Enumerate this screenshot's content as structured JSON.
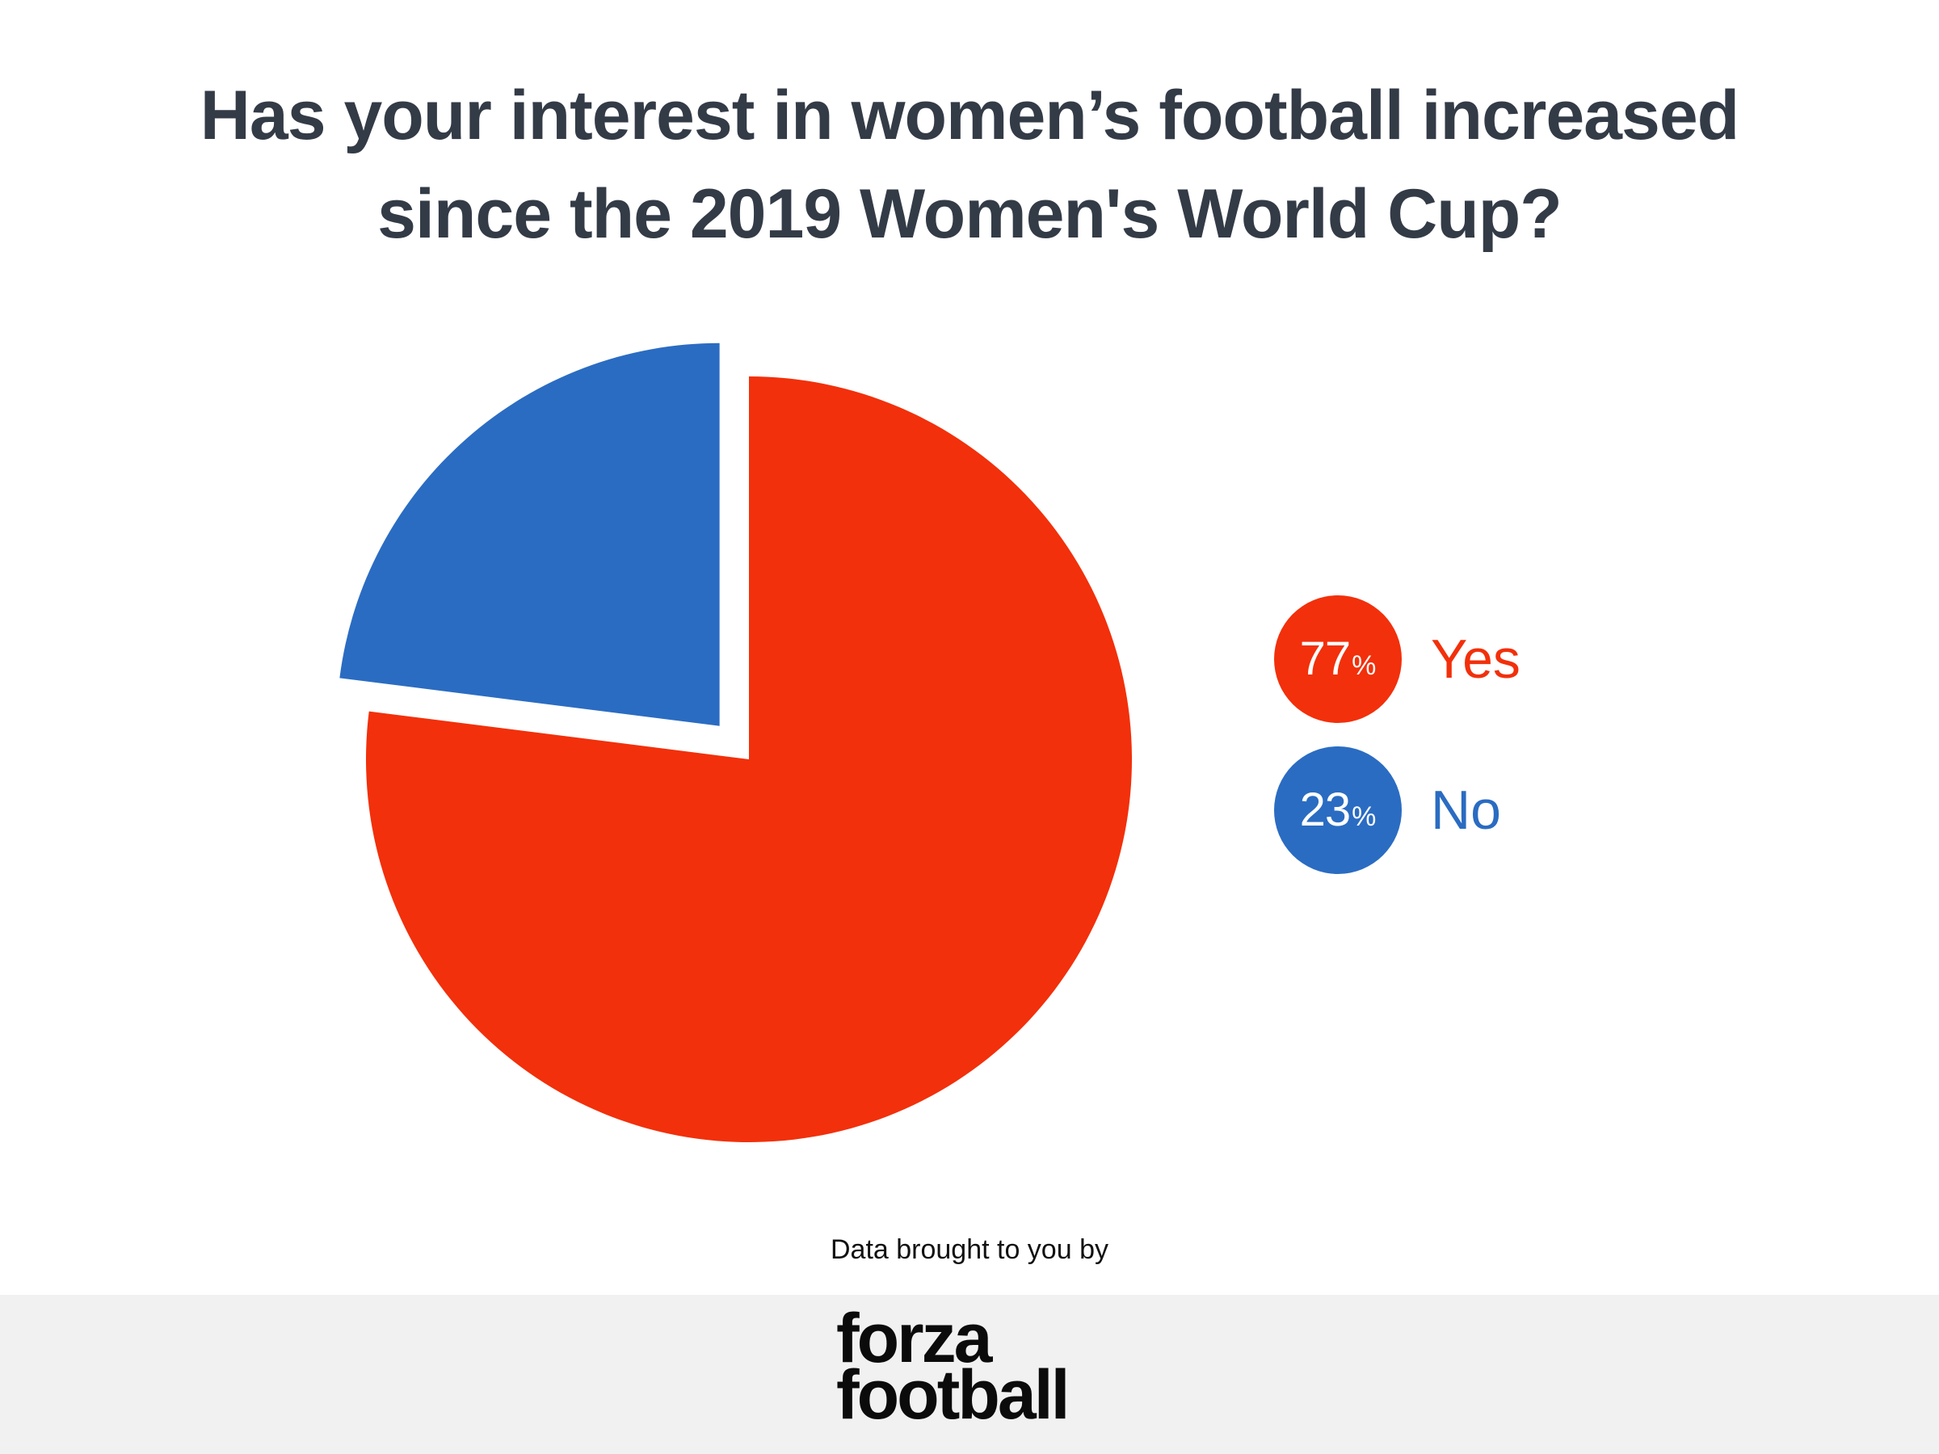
{
  "title": {
    "line1": "Has your interest in women’s football increased",
    "line2": "since the 2019 Women's World Cup?"
  },
  "chart_data": {
    "type": "pie",
    "title": "Has your interest in women’s football increased since the 2019 Women's World Cup?",
    "slices": [
      {
        "label": "Yes",
        "value": 77,
        "color": "#f2300b"
      },
      {
        "label": "No",
        "value": 23,
        "color": "#2a6cc2"
      }
    ]
  },
  "legend": [
    {
      "value": "77",
      "unit": "%",
      "label": "Yes",
      "color": "#f2300b"
    },
    {
      "value": "23",
      "unit": "%",
      "label": "No",
      "color": "#2a6cc2"
    }
  ],
  "credit": "Data brought to you by",
  "logo": {
    "line1": "forza",
    "line2": "football"
  }
}
